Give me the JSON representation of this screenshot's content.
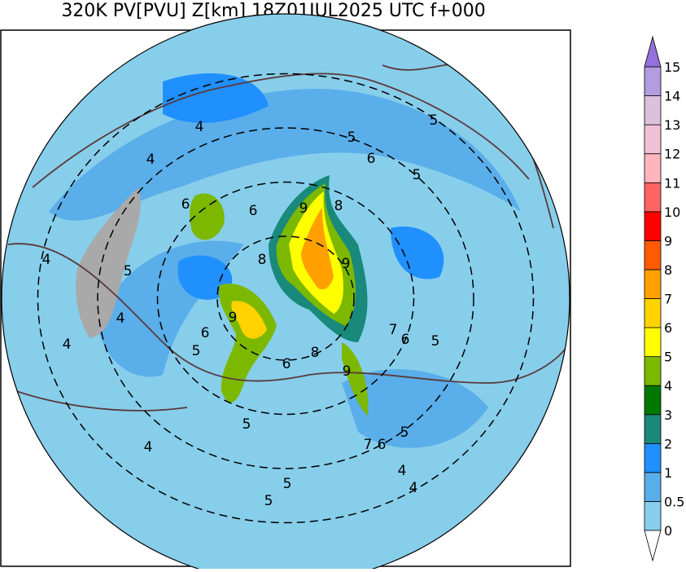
{
  "title": "320K PV[PVU] Z[km] 18Z01JUL2025 UTC f+000",
  "contour_labels": [
    4,
    4,
    4,
    4,
    4,
    4,
    4,
    4,
    5,
    5,
    5,
    5,
    5,
    5,
    5,
    5,
    5,
    5,
    6,
    6,
    6,
    6,
    6,
    6,
    6,
    7,
    7,
    8,
    8,
    8,
    9,
    9,
    9,
    9
  ],
  "colorbar": {
    "levels": [
      0,
      0.5,
      1,
      2,
      3,
      4,
      5,
      6,
      7,
      8,
      9,
      10,
      11,
      12,
      13,
      14,
      15
    ],
    "colors": [
      "#87ceeb",
      "#5aaeea",
      "#2090ff",
      "#18897a",
      "#007800",
      "#7cb800",
      "#ffff00",
      "#ffd200",
      "#ffa000",
      "#ff5a00",
      "#ff0000",
      "#ff6464",
      "#ffb4be",
      "#f0c0d6",
      "#dcc0dc",
      "#b49ce0"
    ],
    "under_color": "#ffffff",
    "over_color": "#9370db"
  }
}
